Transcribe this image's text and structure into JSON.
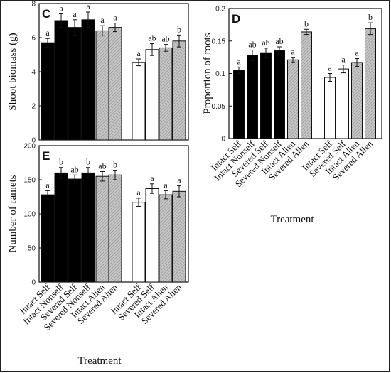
{
  "colors": {
    "solid": "#000000",
    "open": "#ffffff",
    "hatched": "#bdbdbd",
    "axis": "#111111"
  },
  "chart_data": [
    {
      "panel": "C",
      "type": "bar",
      "ylabel": "Shoot biomass (g)",
      "ylim": [
        0,
        8
      ],
      "yticks": [
        0,
        2,
        4,
        6,
        8
      ],
      "groups": [
        {
          "categories": [
            "Intact Self",
            "Intact Nonself",
            "Severed Self",
            "Severed Nonself",
            "Intact Alien",
            "Severed Alien"
          ],
          "values": [
            5.7,
            7.0,
            6.6,
            7.05,
            6.4,
            6.6
          ],
          "errors": [
            0.25,
            0.4,
            0.45,
            0.45,
            0.3,
            0.25
          ],
          "letters": [
            "a",
            "a",
            "a",
            "a",
            "a",
            "a"
          ],
          "fills": [
            "solid",
            "solid",
            "solid",
            "solid",
            "hatched",
            "hatched"
          ]
        },
        {
          "categories": [
            "Intact Self",
            "Severed Self",
            "Intact Alien",
            "Severed Alien"
          ],
          "values": [
            4.55,
            5.3,
            5.4,
            5.8
          ],
          "errors": [
            0.2,
            0.35,
            0.2,
            0.35
          ],
          "letters": [
            "a",
            "ab",
            "ab",
            "b"
          ],
          "fills": [
            "open",
            "open",
            "hatched",
            "hatched"
          ]
        }
      ]
    },
    {
      "panel": "E",
      "type": "bar",
      "ylabel": "Number of ramets",
      "xlabel": "Treatment",
      "ylim": [
        0,
        200
      ],
      "yticks": [
        0,
        50,
        100,
        150,
        200
      ],
      "groups": [
        {
          "categories": [
            "Intact Self",
            "Intact Nonself",
            "Severed Self",
            "Severed Nonself",
            "Intact Alien",
            "Severed Alien"
          ],
          "values": [
            128,
            160,
            151,
            160,
            155,
            157
          ],
          "errors": [
            6,
            8,
            6,
            8,
            7,
            7
          ],
          "letters": [
            "a",
            "b",
            "ab",
            "b",
            "ab",
            "b"
          ],
          "fills": [
            "solid",
            "solid",
            "solid",
            "solid",
            "hatched",
            "hatched"
          ]
        },
        {
          "categories": [
            "Intact Self",
            "Severed Self",
            "Intact Alien",
            "Severed Alien"
          ],
          "values": [
            117,
            137,
            128,
            133
          ],
          "errors": [
            6,
            7,
            6,
            8
          ],
          "letters": [
            "a",
            "a",
            "a",
            "a"
          ],
          "fills": [
            "open",
            "open",
            "hatched",
            "hatched"
          ]
        }
      ]
    },
    {
      "panel": "D",
      "type": "bar",
      "ylabel": "Proportion of roots",
      "xlabel": "Treatment",
      "ylim": [
        0,
        0.2
      ],
      "yticks": [
        "0",
        "0.05",
        "0.1",
        "0.15",
        "0.2"
      ],
      "groups": [
        {
          "categories": [
            "Intact Self",
            "Intact Nonself",
            "Severed Self",
            "Severed Nonself",
            "Intact Alien",
            "Severed Alien"
          ],
          "values": [
            0.105,
            0.128,
            0.132,
            0.135,
            0.121,
            0.164
          ],
          "errors": [
            0.005,
            0.008,
            0.007,
            0.006,
            0.004,
            0.004
          ],
          "letters": [
            "a",
            "ab",
            "ab",
            "ab",
            "a",
            "b"
          ],
          "fills": [
            "solid",
            "solid",
            "solid",
            "solid",
            "hatched",
            "hatched"
          ]
        },
        {
          "categories": [
            "Intact Self",
            "Severed Self",
            "Intact Alien",
            "Severed Alien"
          ],
          "values": [
            0.094,
            0.107,
            0.117,
            0.169
          ],
          "errors": [
            0.006,
            0.006,
            0.006,
            0.009
          ],
          "letters": [
            "a",
            "a",
            "a",
            "b"
          ],
          "fills": [
            "open",
            "open",
            "hatched",
            "hatched"
          ]
        }
      ]
    }
  ]
}
